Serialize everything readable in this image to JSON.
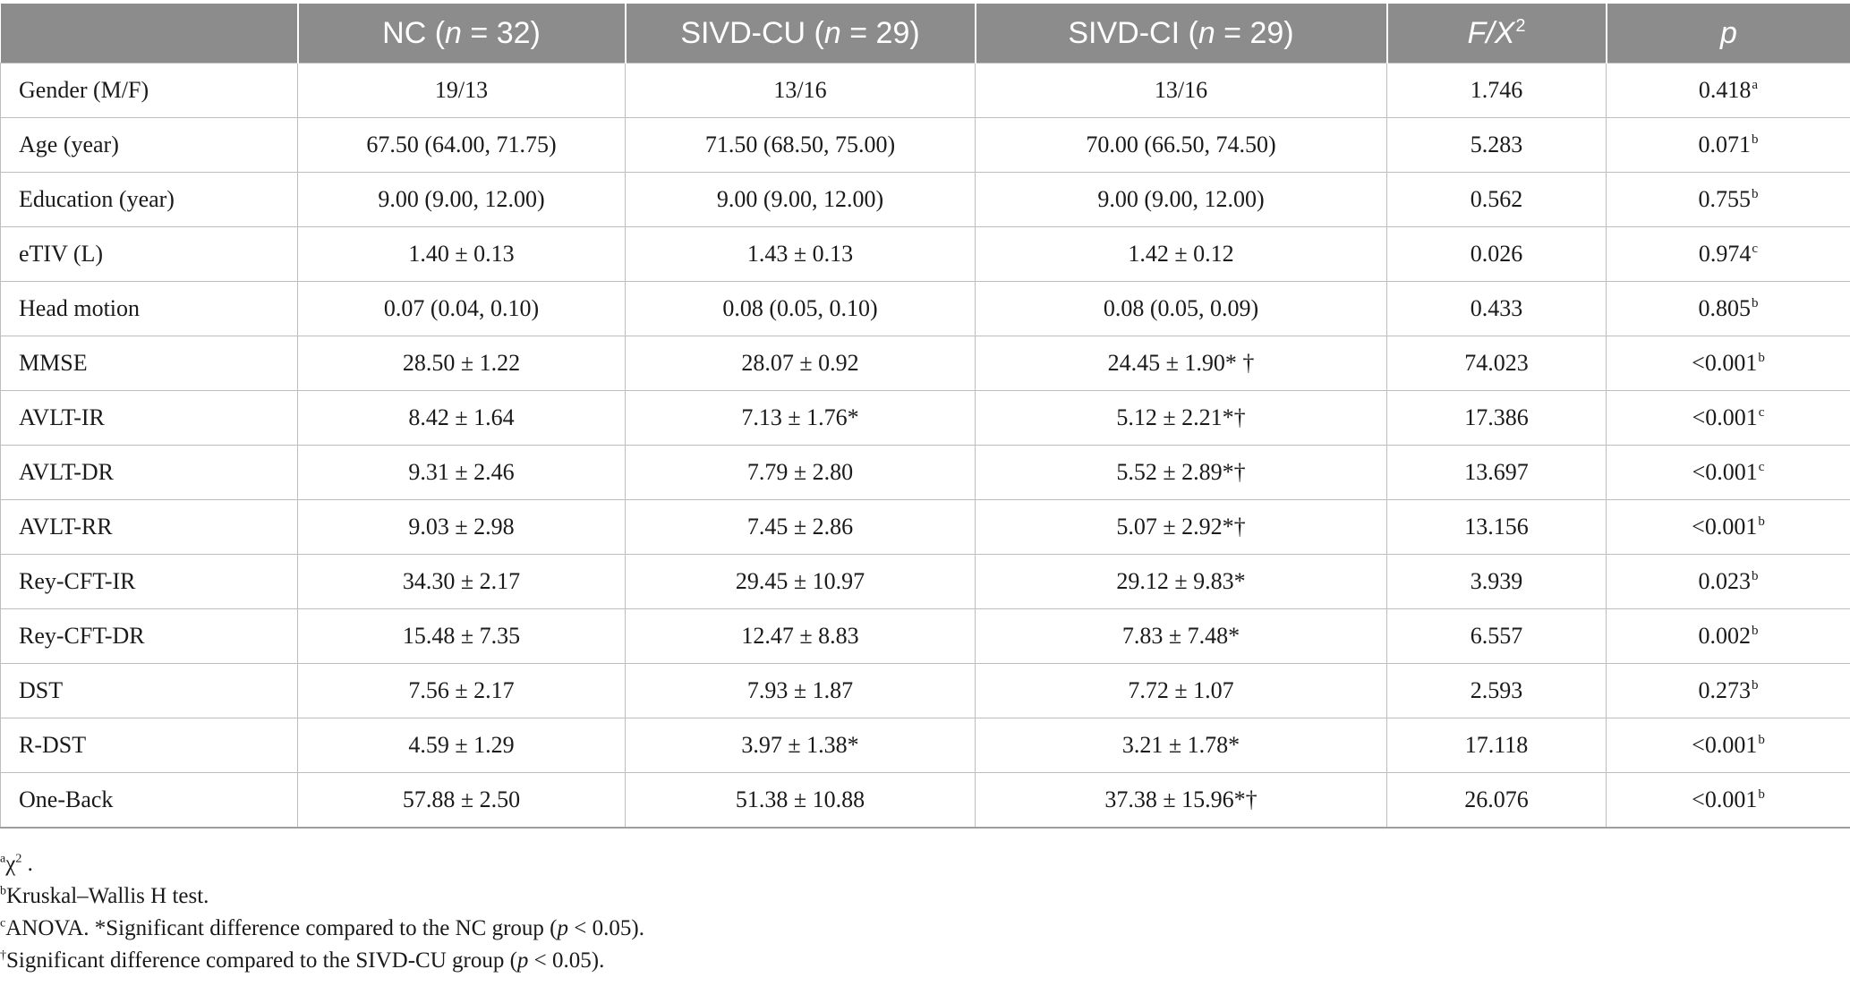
{
  "table": {
    "headers": [
      {
        "parts": [
          ""
        ]
      },
      {
        "parts": [
          "NC (",
          "n",
          " = 32)"
        ]
      },
      {
        "parts": [
          "SIVD-CU (",
          "n",
          " = 29)"
        ]
      },
      {
        "parts": [
          "SIVD-CI (",
          "n",
          " = 29)"
        ]
      },
      {
        "parts": [
          "F/X",
          "2"
        ]
      },
      {
        "parts": [
          "p"
        ]
      }
    ],
    "rows": [
      {
        "label": "Gender (M/F)",
        "nc": "19/13",
        "cu": "13/16",
        "ci": "13/16",
        "stat": "1.746",
        "p": "0.418",
        "p_note": "a"
      },
      {
        "label": "Age (year)",
        "nc": "67.50 (64.00, 71.75)",
        "cu": "71.50 (68.50, 75.00)",
        "ci": "70.00 (66.50, 74.50)",
        "stat": "5.283",
        "p": "0.071",
        "p_note": "b"
      },
      {
        "label": "Education (year)",
        "nc": "9.00 (9.00, 12.00)",
        "cu": "9.00 (9.00, 12.00)",
        "ci": "9.00 (9.00, 12.00)",
        "stat": "0.562",
        "p": "0.755",
        "p_note": "b"
      },
      {
        "label": "eTIV (L)",
        "nc": "1.40 ± 0.13",
        "cu": "1.43 ± 0.13",
        "ci": "1.42 ± 0.12",
        "stat": "0.026",
        "p": "0.974",
        "p_note": "c"
      },
      {
        "label": "Head motion",
        "nc": "0.07 (0.04, 0.10)",
        "cu": "0.08 (0.05, 0.10)",
        "ci": "0.08 (0.05, 0.09)",
        "stat": "0.433",
        "p": "0.805",
        "p_note": "b"
      },
      {
        "label": "MMSE",
        "nc": "28.50 ± 1.22",
        "cu": "28.07 ± 0.92",
        "ci": "24.45 ± 1.90* †",
        "stat": "74.023",
        "p": "<0.001",
        "p_note": "b"
      },
      {
        "label": "AVLT-IR",
        "nc": "8.42 ± 1.64",
        "cu": "7.13 ± 1.76*",
        "ci": "5.12 ± 2.21*†",
        "stat": "17.386",
        "p": "<0.001",
        "p_note": "c"
      },
      {
        "label": "AVLT-DR",
        "nc": "9.31 ± 2.46",
        "cu": "7.79 ± 2.80",
        "ci": "5.52 ± 2.89*†",
        "stat": "13.697",
        "p": "<0.001",
        "p_note": "c"
      },
      {
        "label": "AVLT-RR",
        "nc": "9.03 ± 2.98",
        "cu": "7.45 ± 2.86",
        "ci": "5.07 ± 2.92*†",
        "stat": "13.156",
        "p": "<0.001",
        "p_note": "b"
      },
      {
        "label": "Rey-CFT-IR",
        "nc": "34.30 ± 2.17",
        "cu": "29.45 ± 10.97",
        "ci": "29.12 ± 9.83*",
        "stat": "3.939",
        "p": "0.023",
        "p_note": "b"
      },
      {
        "label": "Rey-CFT-DR",
        "nc": "15.48 ± 7.35",
        "cu": "12.47 ± 8.83",
        "ci": "7.83 ± 7.48*",
        "stat": "6.557",
        "p": "0.002",
        "p_note": "b"
      },
      {
        "label": "DST",
        "nc": "7.56 ± 2.17",
        "cu": "7.93 ± 1.87",
        "ci": "7.72 ± 1.07",
        "stat": "2.593",
        "p": "0.273",
        "p_note": "b"
      },
      {
        "label": "R-DST",
        "nc": "4.59 ± 1.29",
        "cu": "3.97 ± 1.38*",
        "ci": "3.21 ± 1.78*",
        "stat": "17.118",
        "p": "<0.001",
        "p_note": "b"
      },
      {
        "label": "One-Back",
        "nc": "57.88 ± 2.50",
        "cu": "51.38 ± 10.88",
        "ci": "37.38 ± 15.96*†",
        "stat": "26.076",
        "p": "<0.001",
        "p_note": "b"
      }
    ]
  },
  "notes": [
    {
      "mark": "a",
      "parts": [
        "χ",
        "2",
        " ."
      ]
    },
    {
      "mark": "b",
      "parts": [
        "Kruskal–Wallis H test."
      ]
    },
    {
      "mark": "c",
      "parts": [
        "ANOVA. *Significant difference compared to the NC group (",
        "p",
        " < 0.05)."
      ]
    },
    {
      "mark": "†",
      "parts": [
        "Significant difference compared to the SIVD-CU group (",
        "p",
        " < 0.05)."
      ]
    }
  ],
  "colors": {
    "header_bg": "#8c8c8c",
    "header_text": "#ffffff",
    "grid": "#bdbdbd",
    "text": "#1a1a1a"
  }
}
